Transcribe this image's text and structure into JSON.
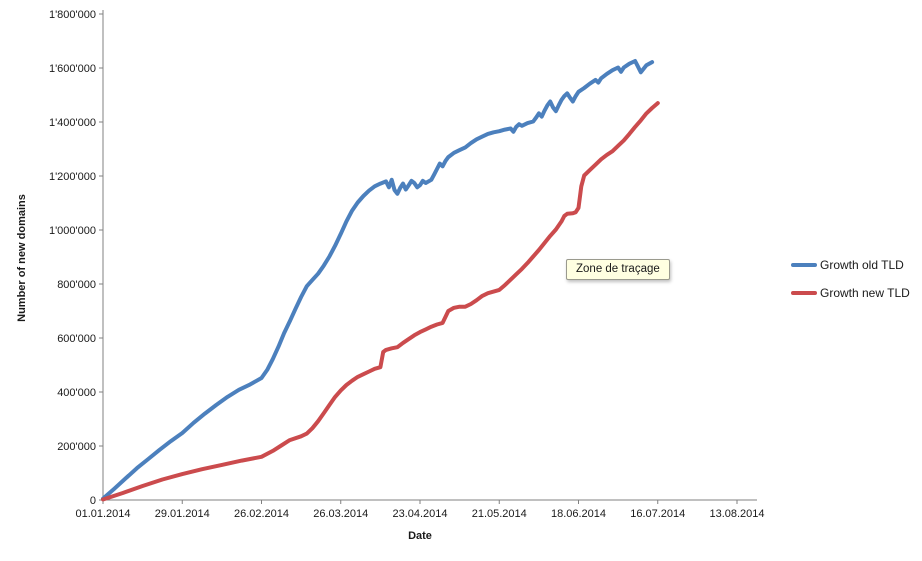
{
  "colors": {
    "axis": "#808080",
    "text": "#1a1a1a",
    "background": "#ffffff"
  },
  "tooltip": {
    "text": "Zone de traçage",
    "bg": "#ffffe1"
  },
  "chart_data": {
    "type": "line",
    "title": "",
    "xlabel": "Date",
    "ylabel": "Number of new domains",
    "legend_position": "right",
    "grid": false,
    "x_axis": {
      "tick_labels": [
        "01.01.2014",
        "29.01.2014",
        "26.02.2014",
        "26.03.2014",
        "23.04.2014",
        "21.05.2014",
        "18.06.2014",
        "16.07.2014",
        "13.08.2014"
      ],
      "tick_days": [
        0,
        28,
        56,
        84,
        112,
        140,
        168,
        196,
        224
      ],
      "range_days": [
        0,
        224
      ]
    },
    "y_axis": {
      "tick_labels": [
        "0",
        "200'000",
        "400'000",
        "600'000",
        "800'000",
        "1'000'000",
        "1'200'000",
        "1'400'000",
        "1'600'000",
        "1'800'000"
      ],
      "tick_values": [
        0,
        200000,
        400000,
        600000,
        800000,
        1000000,
        1200000,
        1400000,
        1600000,
        1800000
      ],
      "range": [
        0,
        1800000
      ]
    },
    "series": [
      {
        "name": "Growth old TLD",
        "color": "#4c80bd",
        "points": [
          [
            0,
            5000
          ],
          [
            4,
            42000
          ],
          [
            8,
            80000
          ],
          [
            12,
            118000
          ],
          [
            16,
            152000
          ],
          [
            20,
            186000
          ],
          [
            24,
            218000
          ],
          [
            28,
            248000
          ],
          [
            32,
            286000
          ],
          [
            36,
            320000
          ],
          [
            40,
            352000
          ],
          [
            44,
            382000
          ],
          [
            48,
            408000
          ],
          [
            52,
            428000
          ],
          [
            56,
            452000
          ],
          [
            58,
            482000
          ],
          [
            60,
            522000
          ],
          [
            62,
            568000
          ],
          [
            64,
            618000
          ],
          [
            66,
            662000
          ],
          [
            68,
            708000
          ],
          [
            70,
            752000
          ],
          [
            72,
            792000
          ],
          [
            74,
            815000
          ],
          [
            76,
            838000
          ],
          [
            78,
            868000
          ],
          [
            80,
            902000
          ],
          [
            82,
            942000
          ],
          [
            84,
            986000
          ],
          [
            86,
            1032000
          ],
          [
            88,
            1072000
          ],
          [
            90,
            1102000
          ],
          [
            92,
            1126000
          ],
          [
            94,
            1146000
          ],
          [
            96,
            1162000
          ],
          [
            98,
            1172000
          ],
          [
            100,
            1180000
          ],
          [
            101,
            1158000
          ],
          [
            102,
            1186000
          ],
          [
            103,
            1148000
          ],
          [
            104,
            1134000
          ],
          [
            105,
            1156000
          ],
          [
            106,
            1172000
          ],
          [
            107,
            1150000
          ],
          [
            108,
            1166000
          ],
          [
            109,
            1182000
          ],
          [
            110,
            1174000
          ],
          [
            111,
            1158000
          ],
          [
            112,
            1166000
          ],
          [
            113,
            1182000
          ],
          [
            114,
            1174000
          ],
          [
            116,
            1186000
          ],
          [
            117,
            1206000
          ],
          [
            118,
            1226000
          ],
          [
            119,
            1246000
          ],
          [
            120,
            1236000
          ],
          [
            121,
            1256000
          ],
          [
            122,
            1270000
          ],
          [
            124,
            1286000
          ],
          [
            126,
            1296000
          ],
          [
            128,
            1306000
          ],
          [
            130,
            1322000
          ],
          [
            132,
            1336000
          ],
          [
            134,
            1346000
          ],
          [
            136,
            1356000
          ],
          [
            138,
            1362000
          ],
          [
            140,
            1366000
          ],
          [
            142,
            1372000
          ],
          [
            144,
            1376000
          ],
          [
            145,
            1364000
          ],
          [
            146,
            1382000
          ],
          [
            147,
            1392000
          ],
          [
            148,
            1386000
          ],
          [
            150,
            1396000
          ],
          [
            152,
            1402000
          ],
          [
            153,
            1416000
          ],
          [
            154,
            1432000
          ],
          [
            155,
            1420000
          ],
          [
            156,
            1442000
          ],
          [
            157,
            1462000
          ],
          [
            158,
            1476000
          ],
          [
            159,
            1454000
          ],
          [
            160,
            1440000
          ],
          [
            161,
            1462000
          ],
          [
            162,
            1482000
          ],
          [
            163,
            1496000
          ],
          [
            164,
            1506000
          ],
          [
            165,
            1490000
          ],
          [
            166,
            1476000
          ],
          [
            167,
            1496000
          ],
          [
            168,
            1512000
          ],
          [
            170,
            1526000
          ],
          [
            172,
            1542000
          ],
          [
            174,
            1556000
          ],
          [
            175,
            1546000
          ],
          [
            176,
            1562000
          ],
          [
            178,
            1578000
          ],
          [
            180,
            1592000
          ],
          [
            182,
            1602000
          ],
          [
            183,
            1586000
          ],
          [
            184,
            1602000
          ],
          [
            186,
            1616000
          ],
          [
            188,
            1626000
          ],
          [
            189,
            1606000
          ],
          [
            190,
            1584000
          ],
          [
            192,
            1610000
          ],
          [
            194,
            1622000
          ]
        ]
      },
      {
        "name": "Growth new TLD",
        "color": "#cb4b4d",
        "points": [
          [
            0,
            2000
          ],
          [
            7,
            26000
          ],
          [
            14,
            52000
          ],
          [
            21,
            76000
          ],
          [
            28,
            96000
          ],
          [
            35,
            114000
          ],
          [
            42,
            130000
          ],
          [
            49,
            146000
          ],
          [
            56,
            160000
          ],
          [
            60,
            182000
          ],
          [
            63,
            202000
          ],
          [
            66,
            222000
          ],
          [
            70,
            236000
          ],
          [
            72,
            246000
          ],
          [
            74,
            266000
          ],
          [
            76,
            292000
          ],
          [
            78,
            322000
          ],
          [
            80,
            352000
          ],
          [
            82,
            382000
          ],
          [
            84,
            406000
          ],
          [
            86,
            426000
          ],
          [
            88,
            442000
          ],
          [
            90,
            456000
          ],
          [
            92,
            466000
          ],
          [
            94,
            476000
          ],
          [
            96,
            486000
          ],
          [
            98,
            492000
          ],
          [
            99,
            548000
          ],
          [
            100,
            556000
          ],
          [
            102,
            562000
          ],
          [
            104,
            566000
          ],
          [
            106,
            582000
          ],
          [
            108,
            596000
          ],
          [
            110,
            610000
          ],
          [
            112,
            622000
          ],
          [
            114,
            632000
          ],
          [
            116,
            642000
          ],
          [
            118,
            650000
          ],
          [
            120,
            656000
          ],
          [
            122,
            700000
          ],
          [
            124,
            712000
          ],
          [
            126,
            716000
          ],
          [
            128,
            716000
          ],
          [
            130,
            726000
          ],
          [
            132,
            740000
          ],
          [
            134,
            756000
          ],
          [
            136,
            766000
          ],
          [
            138,
            772000
          ],
          [
            140,
            778000
          ],
          [
            142,
            796000
          ],
          [
            144,
            816000
          ],
          [
            146,
            836000
          ],
          [
            148,
            856000
          ],
          [
            150,
            878000
          ],
          [
            152,
            902000
          ],
          [
            154,
            926000
          ],
          [
            156,
            952000
          ],
          [
            158,
            978000
          ],
          [
            160,
            1002000
          ],
          [
            162,
            1032000
          ],
          [
            163,
            1052000
          ],
          [
            164,
            1060000
          ],
          [
            166,
            1062000
          ],
          [
            167,
            1066000
          ],
          [
            168,
            1082000
          ],
          [
            169,
            1162000
          ],
          [
            170,
            1202000
          ],
          [
            172,
            1222000
          ],
          [
            174,
            1242000
          ],
          [
            176,
            1262000
          ],
          [
            178,
            1278000
          ],
          [
            180,
            1292000
          ],
          [
            182,
            1312000
          ],
          [
            184,
            1332000
          ],
          [
            186,
            1356000
          ],
          [
            188,
            1382000
          ],
          [
            190,
            1406000
          ],
          [
            192,
            1432000
          ],
          [
            194,
            1452000
          ],
          [
            196,
            1470000
          ]
        ]
      }
    ]
  }
}
